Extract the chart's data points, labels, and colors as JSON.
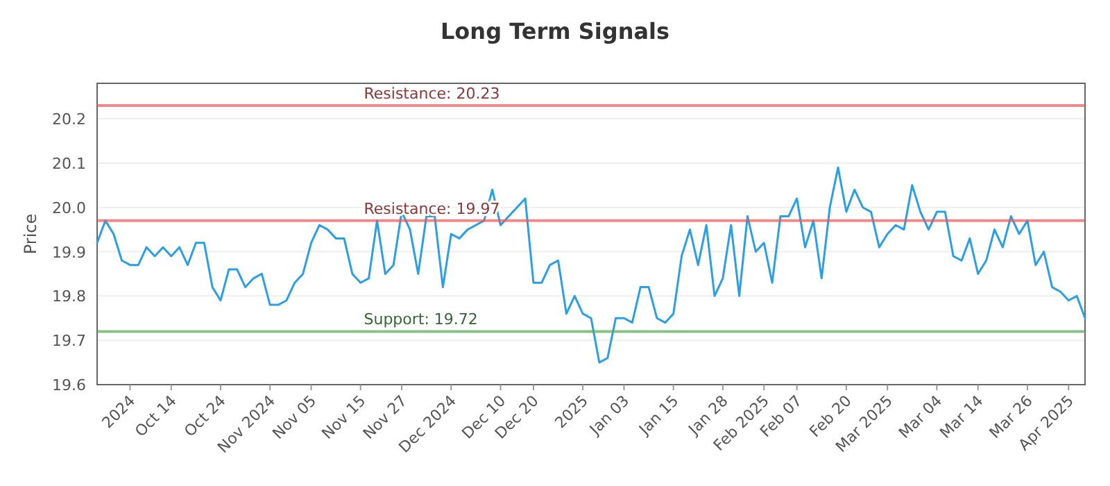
{
  "chart_data": {
    "type": "line",
    "title": "Long Term Signals",
    "ylabel": "Price",
    "categories": [
      null,
      null,
      null,
      null,
      "2024",
      null,
      null,
      null,
      null,
      "Oct 14",
      null,
      null,
      null,
      null,
      null,
      "Oct 24",
      null,
      null,
      null,
      null,
      null,
      "Nov 2024",
      null,
      null,
      null,
      null,
      "Nov 05",
      null,
      null,
      null,
      null,
      null,
      "Nov 15",
      null,
      null,
      null,
      null,
      "Nov 27",
      null,
      null,
      null,
      null,
      null,
      "Dec 2024",
      null,
      null,
      null,
      null,
      null,
      "Dec 10",
      null,
      null,
      null,
      "Dec 20",
      null,
      null,
      null,
      null,
      null,
      "2025",
      null,
      null,
      null,
      null,
      "Jan 03",
      null,
      null,
      null,
      null,
      null,
      "Jan 15",
      null,
      null,
      null,
      null,
      null,
      "Jan 28",
      null,
      null,
      null,
      null,
      "Feb 2025",
      null,
      null,
      null,
      "Feb 07",
      null,
      null,
      null,
      null,
      null,
      "Feb 20",
      null,
      null,
      null,
      null,
      "Mar 2025",
      null,
      null,
      null,
      null,
      null,
      "Mar 04",
      null,
      null,
      null,
      null,
      "Mar 14",
      null,
      null,
      null,
      null,
      null,
      "Mar 26",
      null,
      null,
      null,
      null,
      "Apr 2025",
      null,
      null
    ],
    "series": [
      {
        "color": "#2b9fe6",
        "values": [
          19.92,
          19.97,
          19.94,
          19.88,
          19.87,
          19.87,
          19.91,
          19.89,
          19.91,
          19.89,
          19.91,
          19.87,
          19.92,
          19.92,
          19.82,
          19.79,
          19.86,
          19.86,
          19.82,
          19.84,
          19.85,
          19.78,
          19.78,
          19.79,
          19.83,
          19.85,
          19.92,
          19.96,
          19.95,
          19.93,
          19.93,
          19.85,
          19.83,
          19.84,
          19.97,
          19.85,
          19.87,
          19.99,
          19.95,
          19.85,
          19.98,
          19.98,
          19.82,
          19.94,
          19.93,
          19.95,
          19.96,
          19.97,
          20.04,
          19.96,
          19.98,
          20.0,
          20.02,
          19.83,
          19.83,
          19.87,
          19.88,
          19.76,
          19.8,
          19.76,
          19.75,
          19.65,
          19.66,
          19.75,
          19.75,
          19.74,
          19.82,
          19.82,
          19.75,
          19.74,
          19.76,
          19.89,
          19.95,
          19.87,
          19.96,
          19.8,
          19.84,
          19.96,
          19.8,
          19.98,
          19.9,
          19.92,
          19.83,
          19.98,
          19.98,
          20.02,
          19.91,
          19.97,
          19.84,
          20.0,
          20.09,
          19.99,
          20.04,
          20.0,
          19.99,
          19.91,
          19.94,
          19.96,
          19.95,
          20.05,
          19.99,
          19.95,
          19.99,
          19.99,
          19.89,
          19.88,
          19.93,
          19.85,
          19.88,
          19.95,
          19.91,
          19.98,
          19.94,
          19.97,
          19.87,
          19.9,
          19.82,
          19.81,
          19.79,
          19.8,
          19.75
        ]
      }
    ],
    "ylim": [
      19.6,
      20.28
    ],
    "yticks": [
      19.6,
      19.7,
      19.8,
      19.9,
      {
        "value": 20.0,
        "label": "20.0"
      },
      20.1,
      20.2
    ],
    "grid": "y",
    "marker": "none",
    "line_style": "solid",
    "ref_lines": [
      {
        "axis": "y",
        "value": 20.23,
        "label": "Resistance: 20.23",
        "color": "#e8595a"
      },
      {
        "axis": "y",
        "value": 19.97,
        "label": "Resistance: 19.97",
        "color": "#e8595a"
      },
      {
        "axis": "y",
        "value": 19.72,
        "label": "Support: 19.72",
        "color": "#5aa855"
      }
    ]
  }
}
